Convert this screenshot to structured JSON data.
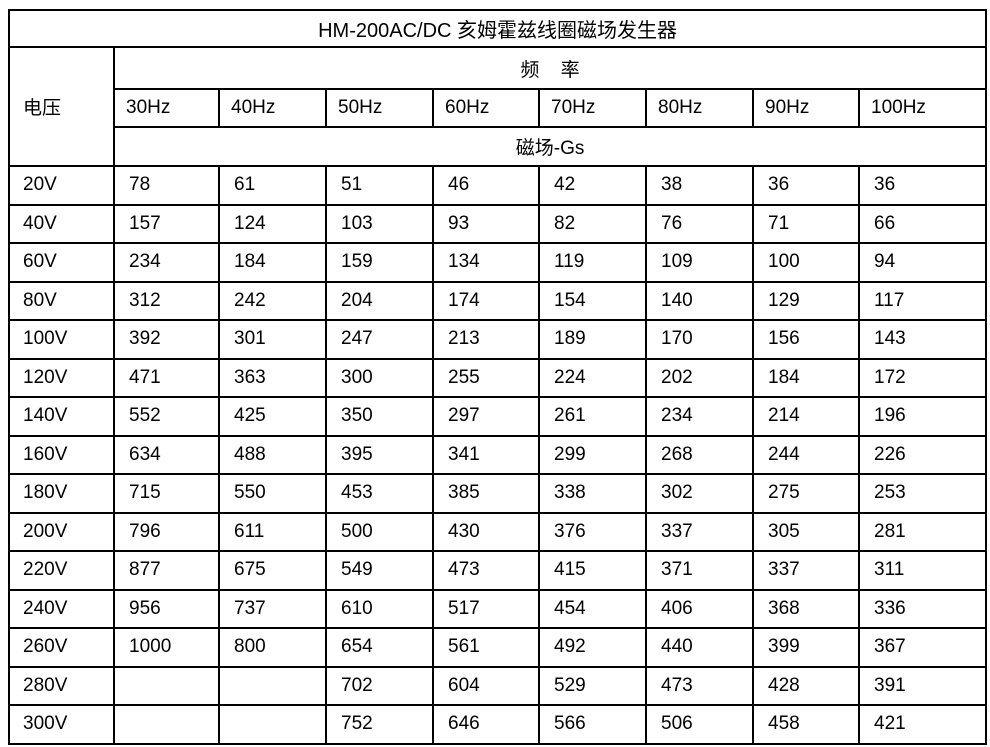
{
  "table": {
    "title": "HM-200AC/DC 亥姆霍兹线圈磁场发生器",
    "voltage_header": "电压",
    "frequency_header": "频 率",
    "field_unit_header": "磁场-Gs",
    "frequency_columns": [
      "30Hz",
      "40Hz",
      "50Hz",
      "60Hz",
      "70Hz",
      "80Hz",
      "90Hz",
      "100Hz"
    ],
    "rows": [
      {
        "voltage": "20V",
        "values": [
          "78",
          "61",
          "51",
          "46",
          "42",
          "38",
          "36",
          "36"
        ]
      },
      {
        "voltage": "40V",
        "values": [
          "157",
          "124",
          "103",
          "93",
          "82",
          "76",
          "71",
          "66"
        ]
      },
      {
        "voltage": "60V",
        "values": [
          "234",
          "184",
          "159",
          "134",
          "119",
          "109",
          "100",
          "94"
        ]
      },
      {
        "voltage": "80V",
        "values": [
          "312",
          "242",
          "204",
          "174",
          "154",
          "140",
          "129",
          "117"
        ]
      },
      {
        "voltage": "100V",
        "values": [
          "392",
          "301",
          "247",
          "213",
          "189",
          "170",
          "156",
          "143"
        ]
      },
      {
        "voltage": "120V",
        "values": [
          "471",
          "363",
          "300",
          "255",
          "224",
          "202",
          "184",
          "172"
        ]
      },
      {
        "voltage": "140V",
        "values": [
          "552",
          "425",
          "350",
          "297",
          "261",
          "234",
          "214",
          "196"
        ]
      },
      {
        "voltage": "160V",
        "values": [
          "634",
          "488",
          "395",
          "341",
          "299",
          "268",
          "244",
          "226"
        ]
      },
      {
        "voltage": "180V",
        "values": [
          "715",
          "550",
          "453",
          "385",
          "338",
          "302",
          "275",
          "253"
        ]
      },
      {
        "voltage": "200V",
        "values": [
          "796",
          "611",
          "500",
          "430",
          "376",
          "337",
          "305",
          "281"
        ]
      },
      {
        "voltage": "220V",
        "values": [
          "877",
          "675",
          "549",
          "473",
          "415",
          "371",
          "337",
          "311"
        ]
      },
      {
        "voltage": "240V",
        "values": [
          "956",
          "737",
          "610",
          "517",
          "454",
          "406",
          "368",
          "336"
        ]
      },
      {
        "voltage": "260V",
        "values": [
          "1000",
          "800",
          "654",
          "561",
          "492",
          "440",
          "399",
          "367"
        ]
      },
      {
        "voltage": "280V",
        "values": [
          "",
          "",
          "702",
          "604",
          "529",
          "473",
          "428",
          "391"
        ]
      },
      {
        "voltage": "300V",
        "values": [
          "",
          "",
          "752",
          "646",
          "566",
          "506",
          "458",
          "421"
        ]
      }
    ],
    "colors": {
      "border": "#000000",
      "background": "#ffffff",
      "text": "#000000"
    }
  }
}
